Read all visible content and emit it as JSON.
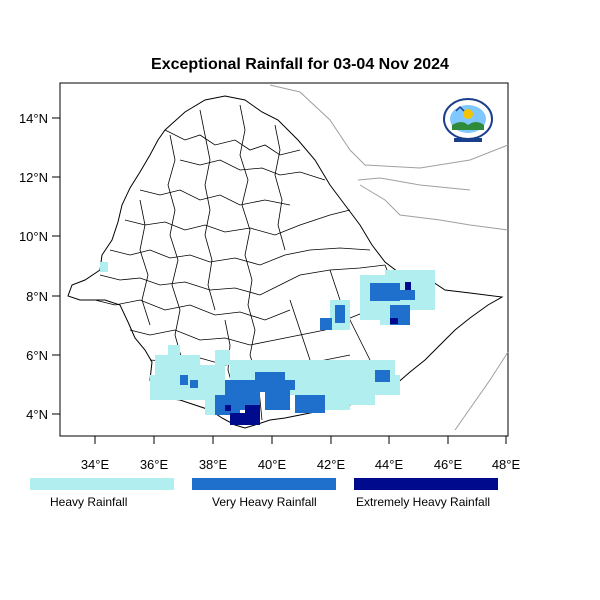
{
  "title": "Exceptional Rainfall for 03-04 Nov 2024",
  "axes": {
    "x_ticks": [
      "34°E",
      "36°E",
      "38°E",
      "40°E",
      "42°E",
      "44°E",
      "46°E",
      "48°E"
    ],
    "y_ticks": [
      "14°N",
      "12°N",
      "10°N",
      "8°N",
      "6°N",
      "4°N"
    ]
  },
  "legend": [
    {
      "label": "Heavy Rainfall",
      "color": "#b0eef0"
    },
    {
      "label": "Very Heavy Rainfall",
      "color": "#1f6fcc"
    },
    {
      "label": "Extremely Heavy Rainfall",
      "color": "#000a8c"
    }
  ],
  "colors": {
    "heavy": "#b0eef0",
    "very_heavy": "#1f6fcc",
    "extreme": "#000a8c",
    "border": "#000000",
    "neighbor_border": "#a0a0a0"
  },
  "logo": {
    "icon": "ethiopian-meteorology-institute-logo"
  }
}
